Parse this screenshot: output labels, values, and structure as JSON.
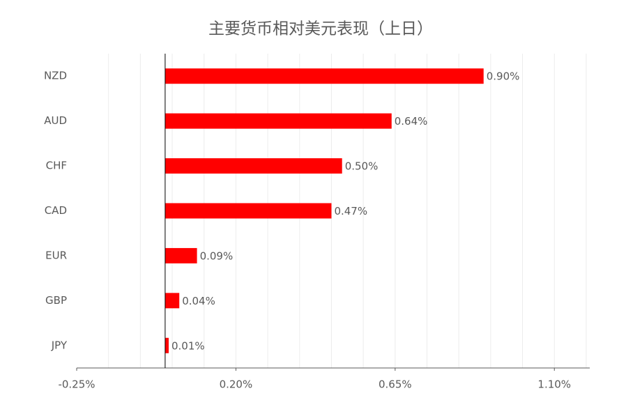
{
  "chart_data": {
    "type": "barh",
    "title": "主要货币相对美元表现（上日）",
    "categories": [
      "NZD",
      "AUD",
      "CHF",
      "CAD",
      "EUR",
      "GBP",
      "JPY"
    ],
    "values": [
      0.9,
      0.64,
      0.5,
      0.47,
      0.09,
      0.04,
      0.01
    ],
    "value_labels": [
      "0.90%",
      "0.64%",
      "0.50%",
      "0.47%",
      "0.09%",
      "0.04%",
      "0.01%"
    ],
    "color": "#ff0000",
    "xlim": [
      -0.25,
      1.2
    ],
    "xticks": [
      {
        "value": -0.25,
        "label": "-0.25%"
      },
      {
        "value": 0.2,
        "label": "0.20%"
      },
      {
        "value": 0.65,
        "label": "0.65%"
      },
      {
        "value": 1.1,
        "label": "1.10%"
      }
    ],
    "xgrid": [
      -0.16,
      -0.07,
      0.02,
      0.11,
      0.2,
      0.29,
      0.38,
      0.47,
      0.56,
      0.65,
      0.74,
      0.83,
      0.92,
      1.01,
      1.1,
      1.19
    ],
    "grid": true
  }
}
